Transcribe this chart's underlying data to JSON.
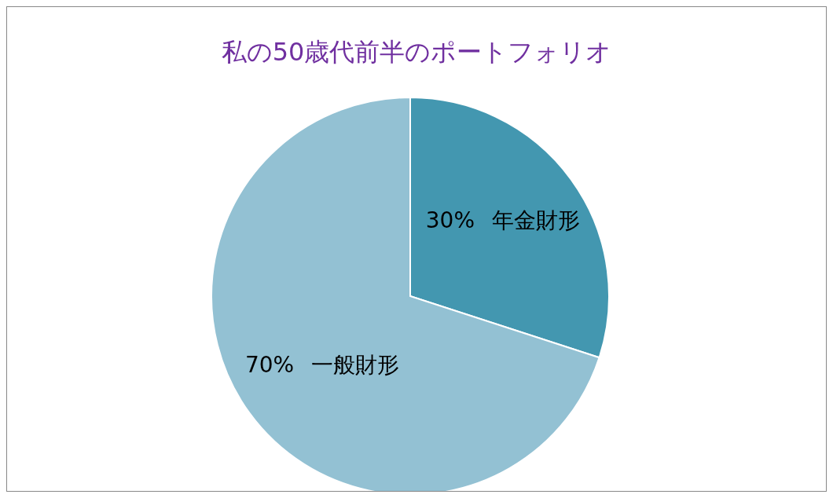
{
  "chart_data": {
    "type": "pie",
    "title": "私の50歳代前半のポートフォリオ",
    "categories": [
      "年金財形",
      "一般財形"
    ],
    "values": [
      30,
      70
    ],
    "colors": [
      "#4397b0",
      "#93c1d3"
    ],
    "value_labels": [
      "30%",
      "70%"
    ]
  }
}
